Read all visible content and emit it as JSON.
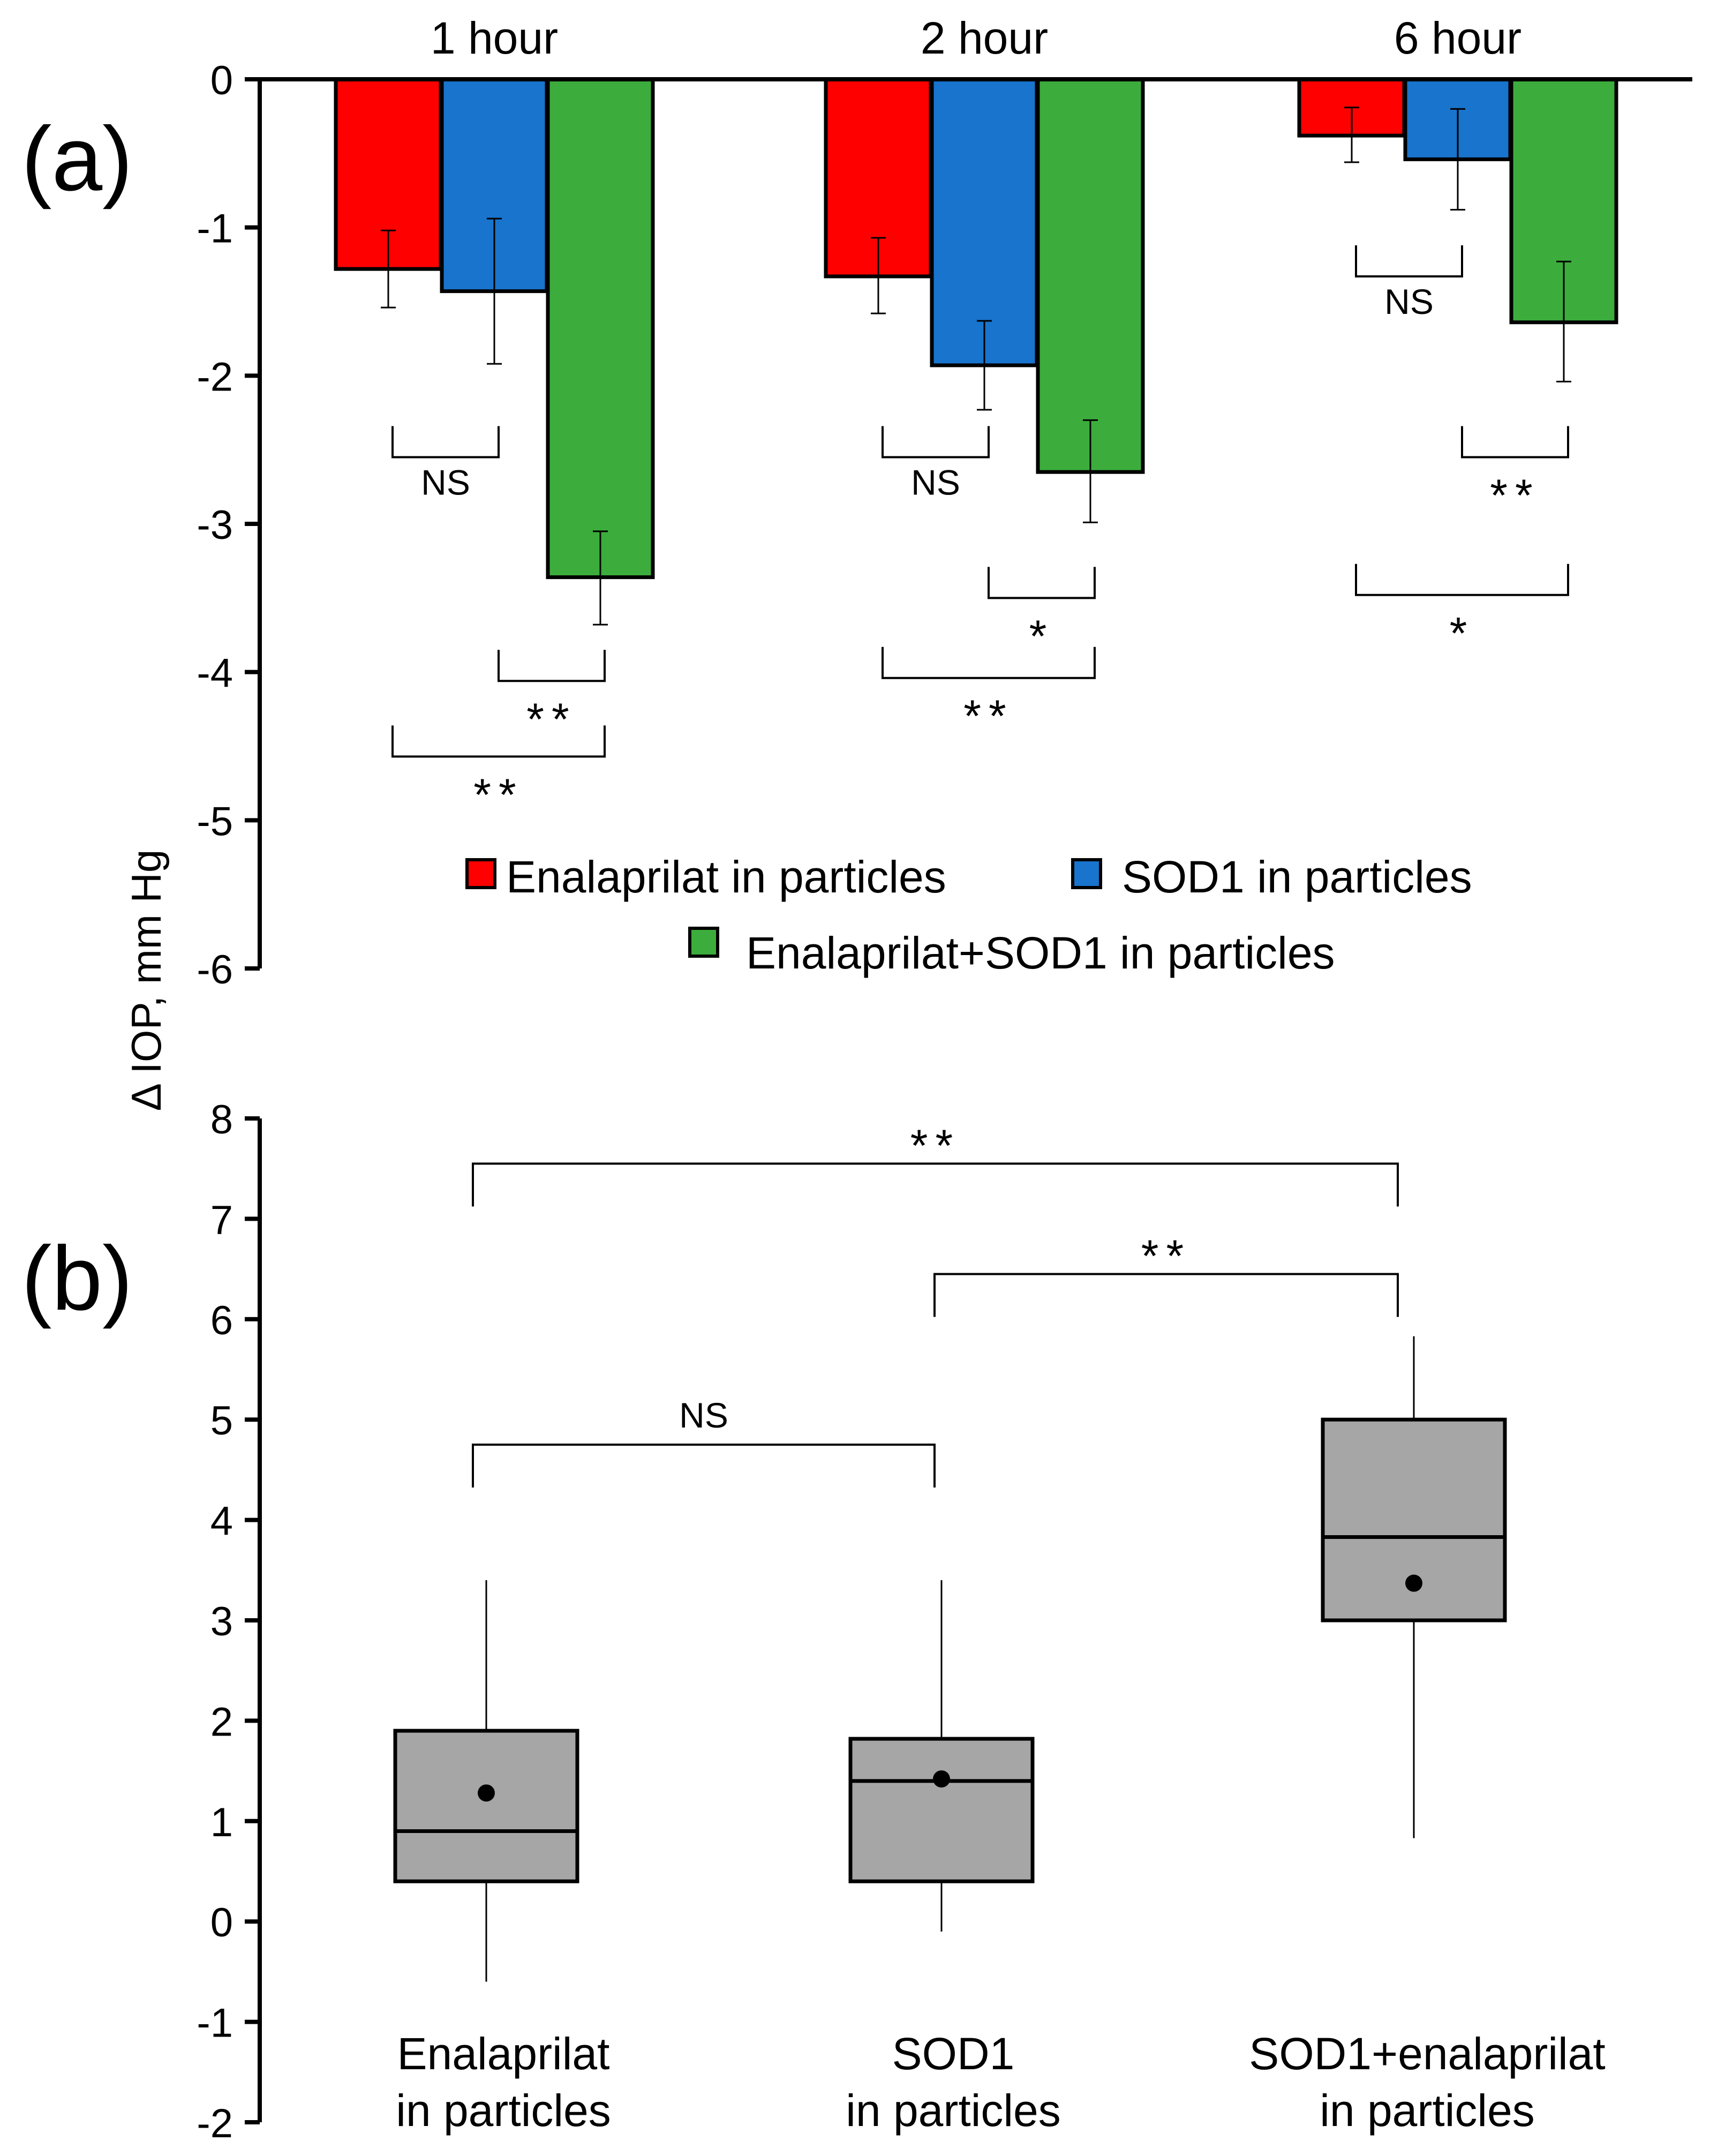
{
  "shared_ylabel": "Δ IOP, mm Hg",
  "chart_data": [
    {
      "panel": "(a)",
      "type": "bar",
      "categories": [
        "1 hour",
        "2 hour",
        "6 hour"
      ],
      "ylim": [
        -6,
        0
      ],
      "yticks": [
        0,
        -1,
        -2,
        -3,
        -4,
        -5,
        -6
      ],
      "series": [
        {
          "name": "Enalaprilat in particles",
          "color": "#ff0000",
          "values": [
            -1.28,
            -1.33,
            -0.38
          ],
          "err_low": [
            -1.54,
            -1.58,
            -0.56
          ],
          "err_high": [
            -1.02,
            -1.07,
            -0.19
          ]
        },
        {
          "name": "SOD1 in particles",
          "color": "#1874cd",
          "values": [
            -1.43,
            -1.93,
            -0.54
          ],
          "err_low": [
            -1.92,
            -2.23,
            -0.88
          ],
          "err_high": [
            -0.94,
            -1.63,
            -0.2
          ]
        },
        {
          "name": "Enalaprilat+SOD1 in particles",
          "color": "#3cad3c",
          "values": [
            -3.36,
            -2.65,
            -1.64
          ],
          "err_low": [
            -3.68,
            -2.99,
            -2.04
          ],
          "err_high": [
            -3.05,
            -2.3,
            -1.23
          ]
        }
      ],
      "significance": [
        {
          "category": 0,
          "from": 0,
          "to": 1,
          "label": "NS",
          "y": -2.55
        },
        {
          "category": 0,
          "from": 1,
          "to": 2,
          "label": "**",
          "y": -4.06
        },
        {
          "category": 0,
          "from": 0,
          "to": 2,
          "label": "**",
          "y": -4.57
        },
        {
          "category": 1,
          "from": 0,
          "to": 1,
          "label": "NS",
          "y": -2.55
        },
        {
          "category": 1,
          "from": 1,
          "to": 2,
          "label": "*",
          "y": -3.5
        },
        {
          "category": 1,
          "from": 0,
          "to": 2,
          "label": "**",
          "y": -4.04
        },
        {
          "category": 2,
          "from": 0,
          "to": 1,
          "label": "NS",
          "y": -1.33
        },
        {
          "category": 2,
          "from": 1,
          "to": 2,
          "label": "**",
          "y": -2.55
        },
        {
          "category": 2,
          "from": 0,
          "to": 2,
          "label": "*",
          "y": -3.48
        }
      ]
    },
    {
      "panel": "(b)",
      "type": "box",
      "categories": [
        "Enalaprilat\nin particles",
        "SOD1\nin particles",
        "SOD1+enalaprilat\nin particles"
      ],
      "ylim": [
        -2,
        8
      ],
      "yticks": [
        8,
        7,
        6,
        5,
        4,
        3,
        2,
        1,
        0,
        -1,
        -2
      ],
      "boxes": [
        {
          "whisker_low": -0.6,
          "q1": 0.4,
          "median": 0.9,
          "q3": 1.9,
          "whisker_high": 3.4,
          "mean": 1.28
        },
        {
          "whisker_low": -0.1,
          "q1": 0.4,
          "median": 1.4,
          "q3": 1.82,
          "whisker_high": 3.4,
          "mean": 1.42
        },
        {
          "whisker_low": 0.83,
          "q1": 3.0,
          "median": 3.83,
          "q3": 5.0,
          "whisker_high": 5.83,
          "mean": 3.37
        }
      ],
      "significance": [
        {
          "from": 0,
          "to": 2,
          "label": "**",
          "y": 7.55
        },
        {
          "from": 1,
          "to": 2,
          "label": "**",
          "y": 6.45
        },
        {
          "from": 0,
          "to": 1,
          "label": "NS",
          "y": 4.75
        }
      ]
    }
  ]
}
